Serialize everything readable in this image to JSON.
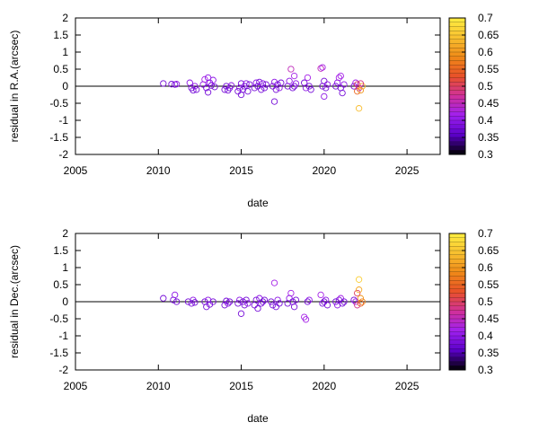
{
  "chart_data": [
    {
      "type": "scatter",
      "xlabel": "date",
      "ylabel": "residual in R.A.(arcsec)",
      "xlim": [
        2005,
        2027
      ],
      "ylim": [
        -2,
        2
      ],
      "xticks": [
        2005,
        2010,
        2015,
        2020,
        2025
      ],
      "xtick_labels": [
        "2005",
        "2010",
        "2015",
        "2020",
        "2025"
      ],
      "yticks": [
        -2,
        -1.5,
        -1,
        -0.5,
        0,
        0.5,
        1,
        1.5,
        2
      ],
      "ytick_labels": [
        "-2",
        "-1.5",
        "-1",
        "-0.5",
        "0",
        "0.5",
        "1",
        "1.5",
        "2"
      ],
      "zero_line": true,
      "marker": "open-circle",
      "colorbar": {
        "range": [
          0.3,
          0.7
        ],
        "ticks": [
          "0.3",
          "0.35",
          "0.4",
          "0.45",
          "0.5",
          "0.55",
          "0.6",
          "0.65",
          "0.7"
        ],
        "palette": [
          "#000000",
          "#5a00c8",
          "#a020f0",
          "#d0309a",
          "#e8502a",
          "#f08a18",
          "#f8c030",
          "#ffee40"
        ]
      },
      "points": [
        [
          2010.3,
          0.08,
          0.38
        ],
        [
          2010.8,
          0.06,
          0.38
        ],
        [
          2011.0,
          0.05,
          0.38
        ],
        [
          2011.1,
          0.06,
          0.4
        ],
        [
          2011.9,
          0.1,
          0.4
        ],
        [
          2012.0,
          -0.05,
          0.38
        ],
        [
          2012.1,
          -0.12,
          0.38
        ],
        [
          2012.2,
          0.0,
          0.4
        ],
        [
          2012.3,
          -0.1,
          0.38
        ],
        [
          2012.7,
          0.05,
          0.4
        ],
        [
          2012.8,
          0.2,
          0.42
        ],
        [
          2012.9,
          -0.05,
          0.38
        ],
        [
          2013.0,
          0.25,
          0.4
        ],
        [
          2013.0,
          -0.18,
          0.38
        ],
        [
          2013.1,
          0.1,
          0.4
        ],
        [
          2013.2,
          0.02,
          0.38
        ],
        [
          2013.3,
          0.18,
          0.4
        ],
        [
          2013.4,
          -0.02,
          0.38
        ],
        [
          2014.0,
          -0.1,
          0.38
        ],
        [
          2014.1,
          0.0,
          0.38
        ],
        [
          2014.2,
          -0.12,
          0.38
        ],
        [
          2014.3,
          -0.05,
          0.38
        ],
        [
          2014.4,
          0.02,
          0.4
        ],
        [
          2014.8,
          -0.15,
          0.38
        ],
        [
          2014.9,
          -0.05,
          0.4
        ],
        [
          2015.0,
          -0.25,
          0.38
        ],
        [
          2015.0,
          0.08,
          0.38
        ],
        [
          2015.1,
          -0.1,
          0.38
        ],
        [
          2015.2,
          0.0,
          0.38
        ],
        [
          2015.3,
          0.08,
          0.4
        ],
        [
          2015.4,
          -0.15,
          0.38
        ],
        [
          2015.5,
          0.05,
          0.38
        ],
        [
          2015.8,
          -0.05,
          0.38
        ],
        [
          2015.9,
          0.1,
          0.4
        ],
        [
          2016.0,
          0.0,
          0.38
        ],
        [
          2016.1,
          0.12,
          0.38
        ],
        [
          2016.2,
          -0.1,
          0.38
        ],
        [
          2016.3,
          0.08,
          0.4
        ],
        [
          2016.4,
          -0.05,
          0.38
        ],
        [
          2016.5,
          0.05,
          0.38
        ],
        [
          2016.9,
          0.0,
          0.38
        ],
        [
          2017.0,
          0.12,
          0.4
        ],
        [
          2017.1,
          -0.1,
          0.38
        ],
        [
          2017.0,
          -0.45,
          0.38
        ],
        [
          2017.2,
          0.05,
          0.38
        ],
        [
          2017.3,
          -0.05,
          0.4
        ],
        [
          2017.4,
          0.1,
          0.38
        ],
        [
          2017.8,
          0.0,
          0.38
        ],
        [
          2017.9,
          0.15,
          0.4
        ],
        [
          2018.0,
          0.5,
          0.45
        ],
        [
          2018.1,
          -0.05,
          0.38
        ],
        [
          2018.2,
          0.3,
          0.42
        ],
        [
          2018.2,
          0.0,
          0.38
        ],
        [
          2018.3,
          0.08,
          0.4
        ],
        [
          2018.8,
          0.1,
          0.38
        ],
        [
          2018.9,
          -0.05,
          0.4
        ],
        [
          2019.0,
          0.25,
          0.42
        ],
        [
          2019.1,
          0.0,
          0.38
        ],
        [
          2019.2,
          -0.1,
          0.38
        ],
        [
          2019.8,
          0.52,
          0.45
        ],
        [
          2019.9,
          0.55,
          0.42
        ],
        [
          2019.9,
          0.0,
          0.38
        ],
        [
          2020.0,
          -0.3,
          0.4
        ],
        [
          2020.0,
          0.15,
          0.38
        ],
        [
          2020.1,
          -0.05,
          0.38
        ],
        [
          2020.2,
          0.05,
          0.4
        ],
        [
          2020.7,
          0.0,
          0.38
        ],
        [
          2020.8,
          0.1,
          0.4
        ],
        [
          2020.9,
          0.25,
          0.42
        ],
        [
          2021.0,
          -0.05,
          0.38
        ],
        [
          2021.0,
          0.3,
          0.42
        ],
        [
          2021.1,
          -0.2,
          0.38
        ],
        [
          2021.2,
          0.05,
          0.4
        ],
        [
          2021.8,
          0.0,
          0.38
        ],
        [
          2021.9,
          0.1,
          0.42
        ],
        [
          2022.0,
          -0.15,
          0.55
        ],
        [
          2022.0,
          0.05,
          0.5
        ],
        [
          2022.1,
          -0.05,
          0.45
        ],
        [
          2022.1,
          -0.65,
          0.64
        ],
        [
          2022.2,
          -0.12,
          0.6
        ],
        [
          2022.3,
          0.0,
          0.62
        ],
        [
          2022.2,
          0.08,
          0.48
        ]
      ]
    },
    {
      "type": "scatter",
      "xlabel": "date",
      "ylabel": "residual in Dec.(arcsec)",
      "xlim": [
        2005,
        2027
      ],
      "ylim": [
        -2,
        2
      ],
      "xticks": [
        2005,
        2010,
        2015,
        2020,
        2025
      ],
      "xtick_labels": [
        "2005",
        "2010",
        "2015",
        "2020",
        "2025"
      ],
      "yticks": [
        -2,
        -1.5,
        -1,
        -0.5,
        0,
        0.5,
        1,
        1.5,
        2
      ],
      "ytick_labels": [
        "-2",
        "-1.5",
        "-1",
        "-0.5",
        "0",
        "0.5",
        "1",
        "1.5",
        "2"
      ],
      "zero_line": true,
      "marker": "open-circle",
      "colorbar": {
        "range": [
          0.3,
          0.7
        ],
        "ticks": [
          "0.3",
          "0.35",
          "0.4",
          "0.45",
          "0.5",
          "0.55",
          "0.6",
          "0.65",
          "0.7"
        ],
        "palette": [
          "#000000",
          "#5a00c8",
          "#a020f0",
          "#d0309a",
          "#e8502a",
          "#f08a18",
          "#f8c030",
          "#ffee40"
        ]
      },
      "points": [
        [
          2010.3,
          0.1,
          0.38
        ],
        [
          2010.9,
          0.05,
          0.38
        ],
        [
          2011.0,
          0.2,
          0.4
        ],
        [
          2011.1,
          0.0,
          0.38
        ],
        [
          2011.8,
          0.0,
          0.38
        ],
        [
          2012.0,
          -0.05,
          0.38
        ],
        [
          2012.1,
          0.05,
          0.4
        ],
        [
          2012.2,
          -0.02,
          0.38
        ],
        [
          2012.8,
          0.0,
          0.38
        ],
        [
          2012.9,
          -0.15,
          0.38
        ],
        [
          2013.0,
          0.05,
          0.4
        ],
        [
          2013.1,
          -0.08,
          0.38
        ],
        [
          2013.3,
          0.0,
          0.38
        ],
        [
          2014.0,
          -0.1,
          0.38
        ],
        [
          2014.1,
          0.02,
          0.38
        ],
        [
          2014.2,
          -0.05,
          0.4
        ],
        [
          2014.3,
          0.0,
          0.38
        ],
        [
          2014.8,
          -0.05,
          0.38
        ],
        [
          2014.9,
          0.05,
          0.4
        ],
        [
          2015.0,
          -0.35,
          0.38
        ],
        [
          2015.1,
          0.0,
          0.38
        ],
        [
          2015.2,
          -0.1,
          0.38
        ],
        [
          2015.3,
          0.05,
          0.38
        ],
        [
          2015.4,
          -0.05,
          0.4
        ],
        [
          2015.8,
          -0.1,
          0.38
        ],
        [
          2015.9,
          0.05,
          0.38
        ],
        [
          2016.0,
          -0.2,
          0.38
        ],
        [
          2016.1,
          0.1,
          0.4
        ],
        [
          2016.2,
          -0.05,
          0.38
        ],
        [
          2016.3,
          0.0,
          0.38
        ],
        [
          2016.4,
          0.05,
          0.38
        ],
        [
          2016.8,
          0.0,
          0.38
        ],
        [
          2016.9,
          -0.1,
          0.38
        ],
        [
          2017.0,
          0.55,
          0.42
        ],
        [
          2017.1,
          -0.15,
          0.38
        ],
        [
          2017.2,
          0.05,
          0.4
        ],
        [
          2017.3,
          -0.05,
          0.38
        ],
        [
          2017.8,
          -0.05,
          0.38
        ],
        [
          2017.9,
          0.1,
          0.4
        ],
        [
          2018.0,
          0.25,
          0.42
        ],
        [
          2018.1,
          0.0,
          0.38
        ],
        [
          2018.2,
          -0.15,
          0.38
        ],
        [
          2018.3,
          0.05,
          0.38
        ],
        [
          2018.8,
          -0.45,
          0.42
        ],
        [
          2018.9,
          -0.52,
          0.42
        ],
        [
          2019.0,
          0.0,
          0.38
        ],
        [
          2019.1,
          0.05,
          0.4
        ],
        [
          2019.8,
          0.2,
          0.42
        ],
        [
          2019.9,
          -0.05,
          0.38
        ],
        [
          2020.0,
          0.0,
          0.38
        ],
        [
          2020.1,
          0.05,
          0.4
        ],
        [
          2020.2,
          -0.1,
          0.38
        ],
        [
          2020.7,
          0.0,
          0.38
        ],
        [
          2020.8,
          -0.1,
          0.4
        ],
        [
          2020.9,
          0.05,
          0.38
        ],
        [
          2021.0,
          0.1,
          0.42
        ],
        [
          2021.1,
          -0.05,
          0.38
        ],
        [
          2021.2,
          0.0,
          0.38
        ],
        [
          2021.8,
          0.05,
          0.38
        ],
        [
          2021.9,
          0.0,
          0.42
        ],
        [
          2022.0,
          0.25,
          0.5
        ],
        [
          2022.0,
          -0.1,
          0.48
        ],
        [
          2022.1,
          0.65,
          0.66
        ],
        [
          2022.1,
          0.35,
          0.62
        ],
        [
          2022.2,
          0.1,
          0.6
        ],
        [
          2022.3,
          0.0,
          0.58
        ],
        [
          2022.2,
          -0.05,
          0.55
        ]
      ]
    }
  ]
}
